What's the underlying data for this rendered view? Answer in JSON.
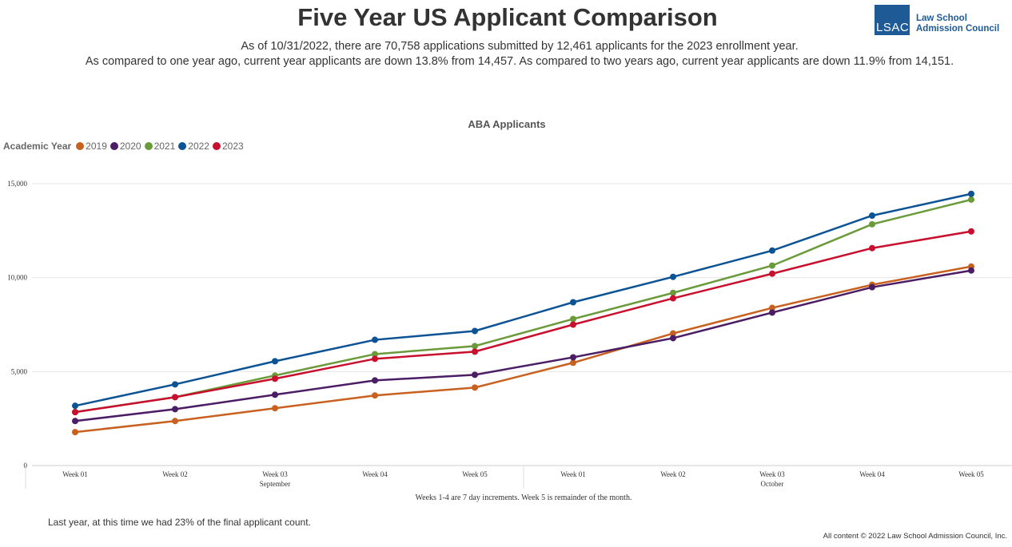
{
  "header": {
    "title": "Five Year US Applicant Comparison",
    "subtitle1": "As of 10/31/2022, there are 70,758 applications submitted by 12,461 applicants for the 2023 enrollment year.",
    "subtitle2": "As compared to one year ago, current year applicants are down 13.8% from 14,457. As compared to two years ago, current year applicants are down 11.9% from 14,151.",
    "logo": {
      "mark": "LSAC",
      "line1": "Law School",
      "line2": "Admission Council"
    }
  },
  "chart_data": {
    "type": "line",
    "title": "ABA Applicants",
    "legend_title": "Academic Year",
    "legend_position": "top-left",
    "categories": [
      "Week 01",
      "Week 02",
      "Week 03",
      "Week 04",
      "Week 05",
      "Week 01",
      "Week 02",
      "Week 03",
      "Week 04",
      "Week 05"
    ],
    "groups": [
      {
        "label": "September",
        "center_index": 2
      },
      {
        "label": "October",
        "center_index": 7
      }
    ],
    "xnote": "Weeks 1-4 are 7 day increments. Week 5 is remainder of the month.",
    "ylim": [
      0,
      15000
    ],
    "yticks": [
      0,
      5000,
      10000,
      15000
    ],
    "ytick_labels": [
      "0",
      "5,000",
      "10,000",
      "15,000"
    ],
    "grid": true,
    "series": [
      {
        "name": "2019",
        "color": "#c8611f",
        "values": [
          1780,
          2370,
          3050,
          3730,
          4150,
          5470,
          7030,
          8390,
          9620,
          10590
        ]
      },
      {
        "name": "2020",
        "color": "#4b1d64",
        "values": [
          2370,
          3000,
          3770,
          4530,
          4830,
          5760,
          6780,
          8140,
          9490,
          10380
        ]
      },
      {
        "name": "2021",
        "color": "#6b9a3b",
        "values": [
          2850,
          3640,
          4790,
          5930,
          6360,
          7800,
          9190,
          10640,
          12840,
          14151
        ]
      },
      {
        "name": "2022",
        "color": "#0b5394",
        "values": [
          3180,
          4320,
          5550,
          6690,
          7160,
          8690,
          10040,
          11440,
          13300,
          14457
        ]
      },
      {
        "name": "2023",
        "color": "#c8102e",
        "values": [
          2840,
          3640,
          4620,
          5680,
          6060,
          7500,
          8900,
          10210,
          11570,
          12461
        ]
      }
    ]
  },
  "footer": {
    "note": "Last year, at this time we had 23% of the final applicant count.",
    "copyright": "All content © 2022 Law School Admission Council, Inc."
  }
}
